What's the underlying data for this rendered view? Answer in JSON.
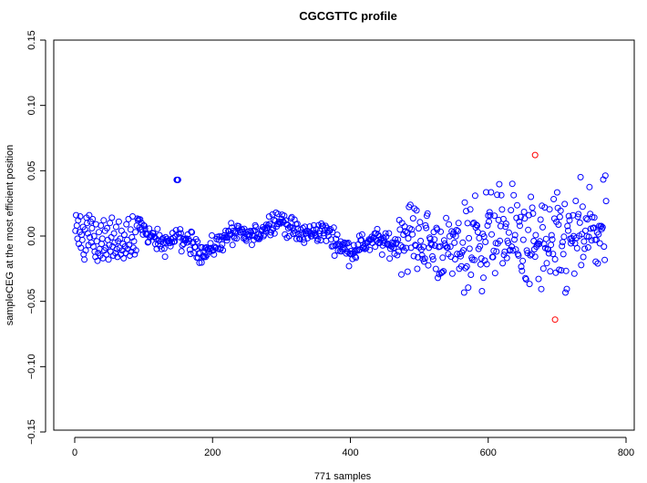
{
  "chart_data": {
    "type": "scatter",
    "title": "CGCGTTC profile",
    "xlabel": "771 samples",
    "ylabel": "sampleCEG at the most efficient position",
    "xlim": [
      0,
      800
    ],
    "ylim": [
      -0.15,
      0.15
    ],
    "xticks": [
      "0",
      "200",
      "400",
      "600",
      "800"
    ],
    "xtick_values": [
      0,
      200,
      400,
      600,
      800
    ],
    "yticks": [
      "−0.15",
      "−0.10",
      "−0.05",
      "0.00",
      "0.05",
      "0.10",
      "0.15"
    ],
    "ytick_values": [
      -0.15,
      -0.1,
      -0.05,
      0,
      0.05,
      0.1,
      0.15
    ],
    "grid": false,
    "n_samples": 771,
    "series": [
      {
        "color": "#0000ff",
        "marker": "open-circle",
        "values": [
          0.004,
          0.016,
          0.008,
          -0.002,
          0.012,
          -0.006,
          0.003,
          0.015,
          -0.009,
          0.001,
          -0.003,
          0.007,
          -0.014,
          -0.018,
          0.005,
          -0.011,
          0.014,
          0.01,
          0.002,
          -0.007,
          0.016,
          -0.001,
          0.011,
          -0.005,
          0.006,
          0.013,
          -0.008,
          0.0,
          -0.012,
          -0.016,
          0.009,
          -0.004,
          -0.019,
          -0.013,
          0.003,
          -0.01,
          -0.015,
          0.008,
          -0.006,
          -0.002,
          -0.017,
          0.012,
          -0.011,
          0.004,
          -0.009,
          -0.014,
          0.006,
          -0.003,
          -0.018,
          -0.007,
          0.01,
          -0.012,
          -0.001,
          0.014,
          -0.008,
          -0.015,
          0.002,
          -0.005,
          -0.013,
          0.007,
          -0.01,
          -0.016,
          -0.004,
          0.011,
          -0.009,
          -0.002,
          -0.014,
          0.004,
          -0.011,
          -0.006,
          -0.017,
          0.001,
          -0.008,
          -0.013,
          0.009,
          -0.003,
          -0.01,
          0.013,
          -0.007,
          -0.015,
          0.005,
          -0.012,
          -0.001,
          0.015,
          -0.009,
          -0.004,
          -0.014,
          0.003,
          -0.011,
          0.008
        ]
      }
    ],
    "highlight_points": [
      {
        "x": 668,
        "y": 0.062,
        "color": "#ff0000"
      },
      {
        "x": 697,
        "y": -0.064,
        "color": "#ff0000"
      }
    ]
  }
}
